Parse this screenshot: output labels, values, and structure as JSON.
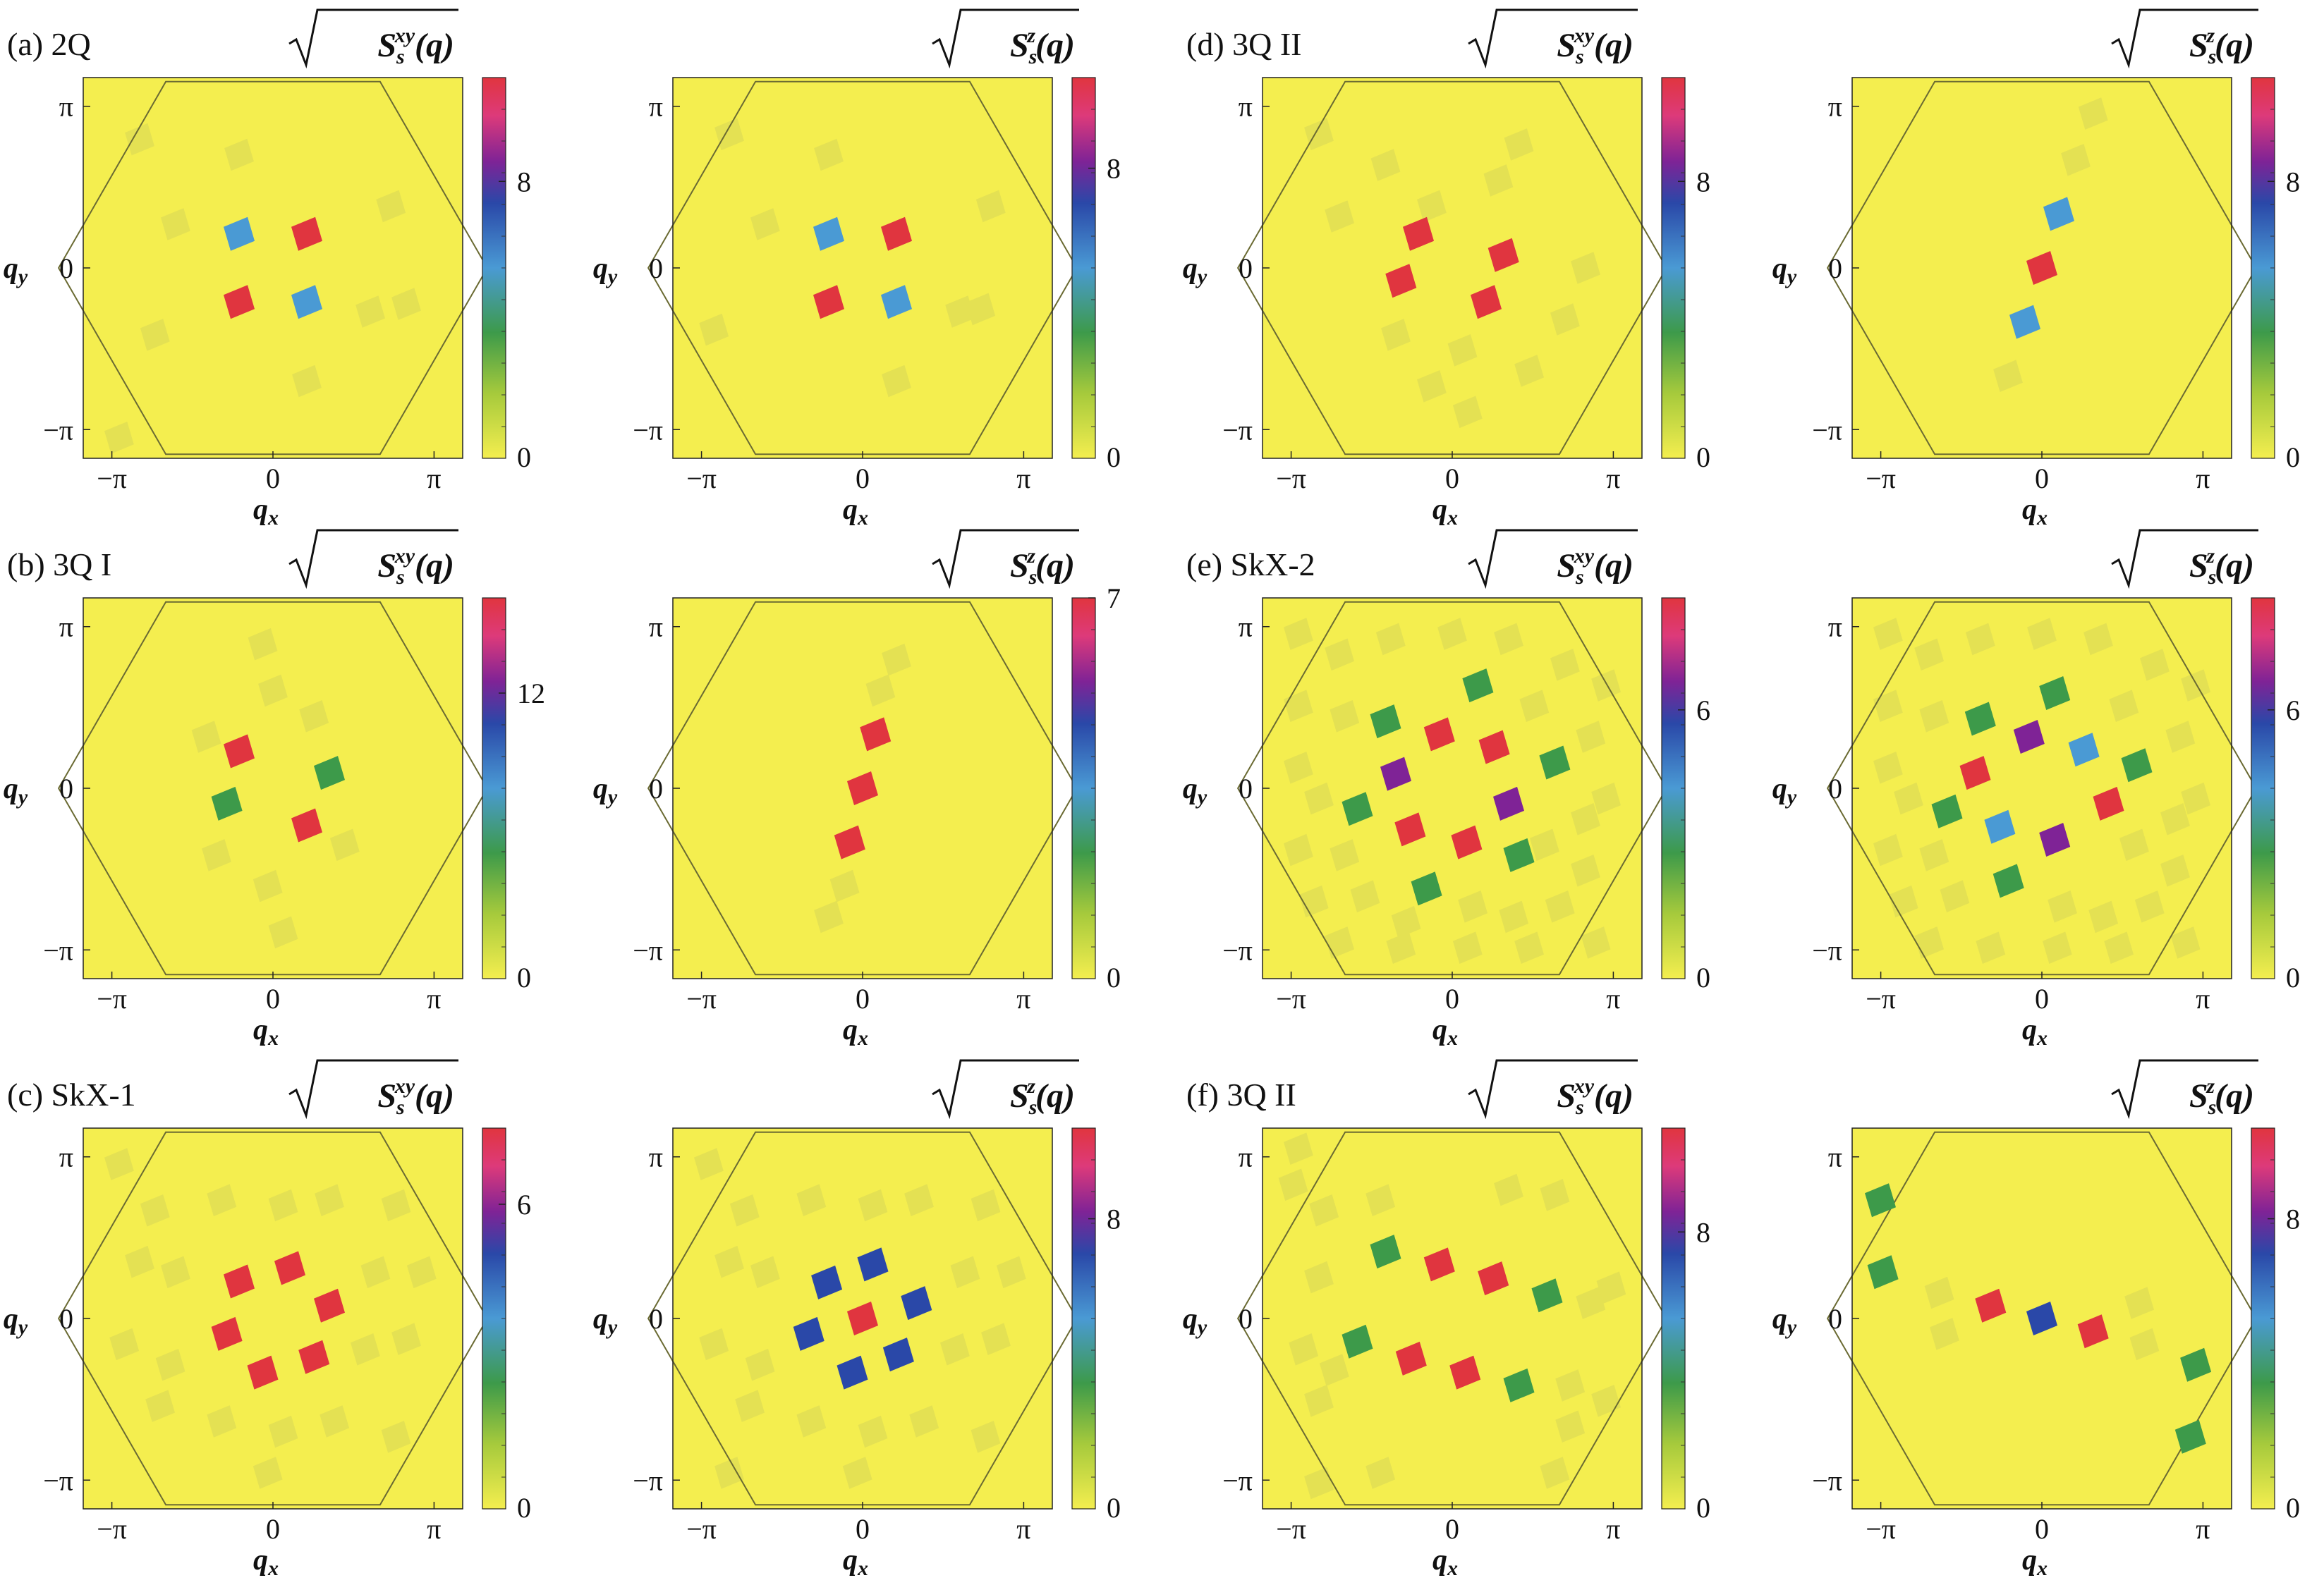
{
  "figure": {
    "axis_labels": {
      "x": "q",
      "x_sub": "x",
      "y": "q",
      "y_sub": "y"
    },
    "ticks": {
      "neg_pi": "−π",
      "zero": "0",
      "pi": "π"
    },
    "colorbar_labels": {
      "xy": "S",
      "xy_sup": "xy",
      "z": "S",
      "z_sup": "z",
      "sub": "s",
      "arg": "(q)"
    },
    "colors": {
      "bg": "#f4ee4f",
      "faint": "#e4e153",
      "red": "#e0353f",
      "magenta": "#dd3a7a",
      "purple": "#7f2396",
      "darkblue": "#2a48a8",
      "blue": "#4a9ad4",
      "green": "#3d9a4a",
      "hex": "#6a6a32"
    }
  },
  "chart_data": [
    {
      "panel": "a",
      "title": "(a) 2Q",
      "type": "heatmap",
      "quantity": "sqrt(S_s^xy(q))",
      "cbar_max": 11,
      "cbar_tick": "8",
      "cbar_tick_value": 8,
      "peaks": [
        {
          "qx": -0.66,
          "qy": 0.66,
          "color": "blue"
        },
        {
          "qx": 0.66,
          "qy": 0.66,
          "color": "red"
        },
        {
          "qx": -0.66,
          "qy": -0.66,
          "color": "red"
        },
        {
          "qx": 0.66,
          "qy": -0.66,
          "color": "blue"
        }
      ],
      "faint": [
        [
          -2.6,
          2.5
        ],
        [
          -0.66,
          2.2
        ],
        [
          -1.9,
          0.85
        ],
        [
          1.9,
          -0.85
        ],
        [
          0.66,
          -2.2
        ],
        [
          2.6,
          -0.7
        ],
        [
          -2.3,
          -1.3
        ],
        [
          2.3,
          1.2
        ],
        [
          -3.0,
          -3.3
        ]
      ]
    },
    {
      "panel": "a",
      "title": "",
      "type": "heatmap",
      "quantity": "sqrt(S_s^z(q))",
      "cbar_max": 10.5,
      "cbar_tick": "8",
      "cbar_tick_value": 8,
      "peaks": [
        {
          "qx": -0.66,
          "qy": 0.66,
          "color": "blue"
        },
        {
          "qx": 0.66,
          "qy": 0.66,
          "color": "red"
        },
        {
          "qx": -0.66,
          "qy": -0.66,
          "color": "red"
        },
        {
          "qx": 0.66,
          "qy": -0.66,
          "color": "blue"
        }
      ],
      "faint": [
        [
          -2.6,
          2.6
        ],
        [
          -0.66,
          2.2
        ],
        [
          -1.9,
          0.85
        ],
        [
          1.9,
          -0.85
        ],
        [
          0.66,
          -2.2
        ],
        [
          2.3,
          -0.8
        ],
        [
          -2.9,
          -1.2
        ],
        [
          2.5,
          1.2
        ]
      ]
    },
    {
      "panel": "d",
      "title": "(d) 3Q II",
      "type": "heatmap",
      "quantity": "sqrt(S_s^xy(q))",
      "cbar_max": 11,
      "cbar_tick": "8",
      "cbar_tick_value": 8,
      "peaks": [
        {
          "qx": -0.66,
          "qy": 0.66,
          "color": "red"
        },
        {
          "qx": 1.0,
          "qy": 0.25,
          "color": "red"
        },
        {
          "qx": -1.0,
          "qy": -0.25,
          "color": "red"
        },
        {
          "qx": 0.66,
          "qy": -0.66,
          "color": "red"
        }
      ],
      "faint": [
        [
          -1.3,
          2.0
        ],
        [
          -0.4,
          1.2
        ],
        [
          0.9,
          1.7
        ],
        [
          1.3,
          2.4
        ],
        [
          -2.2,
          1.0
        ],
        [
          2.2,
          -1.0
        ],
        [
          -1.1,
          -1.3
        ],
        [
          0.2,
          -1.6
        ],
        [
          -0.4,
          -2.3
        ],
        [
          0.3,
          -2.8
        ],
        [
          -2.6,
          2.6
        ],
        [
          2.6,
          0.0
        ],
        [
          1.5,
          -2.0
        ]
      ]
    },
    {
      "panel": "d",
      "title": "",
      "type": "heatmap",
      "quantity": "sqrt(S_s^z(q))",
      "cbar_max": 11,
      "cbar_tick": "8",
      "cbar_tick_value": 8,
      "peaks": [
        {
          "qx": 0.33,
          "qy": 1.05,
          "color": "blue"
        },
        {
          "qx": 0.0,
          "qy": 0.0,
          "color": "red"
        },
        {
          "qx": -0.33,
          "qy": -1.05,
          "color": "blue"
        }
      ],
      "faint": [
        [
          0.66,
          2.1
        ],
        [
          -0.66,
          -2.1
        ],
        [
          1.0,
          3.0
        ]
      ]
    },
    {
      "panel": "b",
      "title": "(b) 3Q I",
      "type": "heatmap",
      "quantity": "sqrt(S_s^xy(q))",
      "cbar_max": 16,
      "cbar_tick": "12",
      "cbar_tick_value": 12,
      "peaks": [
        {
          "qx": -0.66,
          "qy": 0.72,
          "color": "red"
        },
        {
          "qx": 1.1,
          "qy": 0.3,
          "color": "green"
        },
        {
          "qx": -0.9,
          "qy": -0.3,
          "color": "green"
        },
        {
          "qx": 0.66,
          "qy": -0.72,
          "color": "red"
        }
      ],
      "faint": [
        [
          -0.2,
          2.8
        ],
        [
          0.0,
          1.9
        ],
        [
          -0.1,
          -1.9
        ],
        [
          -1.1,
          -1.3
        ],
        [
          0.8,
          1.4
        ],
        [
          -1.3,
          1.0
        ],
        [
          1.4,
          -1.1
        ],
        [
          0.2,
          -2.8
        ]
      ]
    },
    {
      "panel": "b",
      "title": "",
      "type": "heatmap",
      "quantity": "sqrt(S_s^z(q))",
      "cbar_max": 7,
      "cbar_tick": "7",
      "cbar_tick_value": 7,
      "peaks": [
        {
          "qx": 0.25,
          "qy": 1.05,
          "color": "red"
        },
        {
          "qx": 0.0,
          "qy": 0.0,
          "color": "red"
        },
        {
          "qx": -0.25,
          "qy": -1.05,
          "color": "red"
        }
      ],
      "faint": [
        [
          0.66,
          2.5
        ],
        [
          0.35,
          1.9
        ],
        [
          -0.35,
          -1.9
        ],
        [
          -0.66,
          -2.5
        ]
      ]
    },
    {
      "panel": "e",
      "title": "(e) SkX-2",
      "type": "heatmap",
      "quantity": "sqrt(S_s^xy(q))",
      "cbar_max": 8.5,
      "cbar_tick": "6",
      "cbar_tick_value": 6,
      "peaks": [
        {
          "qx": -1.3,
          "qy": 1.3,
          "color": "green"
        },
        {
          "qx": -0.25,
          "qy": 1.05,
          "color": "red"
        },
        {
          "qx": 0.82,
          "qy": 0.8,
          "color": "red"
        },
        {
          "qx": -1.1,
          "qy": 0.28,
          "color": "purple"
        },
        {
          "qx": 1.1,
          "qy": -0.3,
          "color": "purple"
        },
        {
          "qx": -1.85,
          "qy": -0.4,
          "color": "green"
        },
        {
          "qx": -0.82,
          "qy": -0.8,
          "color": "red"
        },
        {
          "qx": 0.28,
          "qy": -1.05,
          "color": "red"
        },
        {
          "qx": 1.3,
          "qy": -1.3,
          "color": "green"
        },
        {
          "qx": 0.5,
          "qy": 2.0,
          "color": "green"
        },
        {
          "qx": -0.5,
          "qy": -1.95,
          "color": "green"
        },
        {
          "qx": 2.0,
          "qy": 0.5,
          "color": "green"
        }
      ],
      "faint": [
        [
          -3.0,
          3.0
        ],
        [
          -2.2,
          2.6
        ],
        [
          -1.2,
          2.9
        ],
        [
          0.0,
          3.0
        ],
        [
          1.1,
          2.9
        ],
        [
          2.2,
          2.4
        ],
        [
          3.0,
          2.0
        ],
        [
          -3.0,
          1.6
        ],
        [
          -2.1,
          1.4
        ],
        [
          1.6,
          1.6
        ],
        [
          2.7,
          1.0
        ],
        [
          -3.0,
          0.4
        ],
        [
          -2.6,
          -0.2
        ],
        [
          2.6,
          -0.6
        ],
        [
          3.0,
          -0.2
        ],
        [
          -3.0,
          -1.2
        ],
        [
          -2.1,
          -1.3
        ],
        [
          1.8,
          -1.1
        ],
        [
          2.6,
          -1.6
        ],
        [
          -2.7,
          -2.2
        ],
        [
          -1.7,
          -2.1
        ],
        [
          -0.9,
          -2.6
        ],
        [
          0.4,
          -2.3
        ],
        [
          1.2,
          -2.5
        ],
        [
          2.1,
          -2.3
        ],
        [
          -2.2,
          -3.0
        ],
        [
          -1.0,
          -3.1
        ],
        [
          0.3,
          -3.1
        ],
        [
          1.5,
          -3.1
        ],
        [
          2.8,
          -3.0
        ]
      ]
    },
    {
      "panel": "e",
      "title": "",
      "type": "heatmap",
      "quantity": "sqrt(S_s^z(q))",
      "cbar_max": 8.5,
      "cbar_tick": "6",
      "cbar_tick_value": 6,
      "peaks": [
        {
          "qx": 0.25,
          "qy": 1.85,
          "color": "green"
        },
        {
          "qx": -1.2,
          "qy": 1.35,
          "color": "green"
        },
        {
          "qx": -0.25,
          "qy": 1.0,
          "color": "purple"
        },
        {
          "qx": 0.82,
          "qy": 0.75,
          "color": "blue"
        },
        {
          "qx": -1.3,
          "qy": 0.3,
          "color": "red"
        },
        {
          "qx": 1.3,
          "qy": -0.3,
          "color": "red"
        },
        {
          "qx": -0.82,
          "qy": -0.75,
          "color": "blue"
        },
        {
          "qx": 0.25,
          "qy": -1.0,
          "color": "purple"
        },
        {
          "qx": -0.65,
          "qy": -1.8,
          "color": "green"
        },
        {
          "qx": 1.85,
          "qy": 0.45,
          "color": "green"
        },
        {
          "qx": -1.85,
          "qy": -0.45,
          "color": "green"
        }
      ],
      "faint": [
        [
          -3.0,
          3.0
        ],
        [
          -2.2,
          2.6
        ],
        [
          -1.2,
          2.9
        ],
        [
          0.0,
          3.0
        ],
        [
          1.1,
          2.9
        ],
        [
          2.2,
          2.4
        ],
        [
          3.0,
          2.0
        ],
        [
          -3.0,
          1.6
        ],
        [
          -2.1,
          1.4
        ],
        [
          1.6,
          1.6
        ],
        [
          2.7,
          1.0
        ],
        [
          -3.0,
          0.4
        ],
        [
          -2.6,
          -0.2
        ],
        [
          2.6,
          -0.6
        ],
        [
          3.0,
          -0.2
        ],
        [
          -3.0,
          -1.2
        ],
        [
          -2.1,
          -1.3
        ],
        [
          1.8,
          -1.1
        ],
        [
          2.6,
          -1.6
        ],
        [
          -2.7,
          -2.2
        ],
        [
          -1.7,
          -2.1
        ],
        [
          0.4,
          -2.3
        ],
        [
          1.2,
          -2.5
        ],
        [
          2.1,
          -2.3
        ],
        [
          -2.2,
          -3.0
        ],
        [
          -1.0,
          -3.1
        ],
        [
          0.3,
          -3.1
        ],
        [
          1.5,
          -3.1
        ],
        [
          2.8,
          -3.0
        ]
      ]
    },
    {
      "panel": "c",
      "title": "(c) SkX-1",
      "type": "heatmap",
      "quantity": "sqrt(S_s^xy(q))",
      "cbar_max": 7.5,
      "cbar_tick": "6",
      "cbar_tick_value": 6,
      "peaks": [
        {
          "qx": -0.66,
          "qy": 0.72,
          "color": "red"
        },
        {
          "qx": 0.33,
          "qy": 0.98,
          "color": "red"
        },
        {
          "qx": 1.1,
          "qy": 0.25,
          "color": "red"
        },
        {
          "qx": -0.9,
          "qy": -0.3,
          "color": "red"
        },
        {
          "qx": -0.2,
          "qy": -1.05,
          "color": "red"
        },
        {
          "qx": 0.8,
          "qy": -0.75,
          "color": "red"
        }
      ],
      "faint": [
        [
          -3.0,
          3.0
        ],
        [
          -2.3,
          2.1
        ],
        [
          -1.0,
          2.3
        ],
        [
          0.2,
          2.2
        ],
        [
          1.1,
          2.3
        ],
        [
          2.4,
          2.2
        ],
        [
          -2.6,
          1.1
        ],
        [
          -1.9,
          0.9
        ],
        [
          2.0,
          0.9
        ],
        [
          2.9,
          0.9
        ],
        [
          -2.9,
          -0.5
        ],
        [
          -2.0,
          -0.9
        ],
        [
          1.8,
          -0.6
        ],
        [
          2.6,
          -0.4
        ],
        [
          -2.2,
          -1.7
        ],
        [
          -1.0,
          -2.0
        ],
        [
          0.2,
          -2.2
        ],
        [
          1.2,
          -2.0
        ],
        [
          2.4,
          -2.3
        ],
        [
          -0.1,
          -3.0
        ]
      ]
    },
    {
      "panel": "c",
      "title": "",
      "type": "heatmap",
      "quantity": "sqrt(S_s^z(q))",
      "cbar_max": 10.5,
      "cbar_tick": "8",
      "cbar_tick_value": 8,
      "peaks": [
        {
          "qx": -0.7,
          "qy": 0.7,
          "color": "darkblue"
        },
        {
          "qx": 0.2,
          "qy": 1.05,
          "color": "darkblue"
        },
        {
          "qx": 1.05,
          "qy": 0.3,
          "color": "darkblue"
        },
        {
          "qx": 0.0,
          "qy": 0.0,
          "color": "red"
        },
        {
          "qx": -1.05,
          "qy": -0.3,
          "color": "darkblue"
        },
        {
          "qx": -0.2,
          "qy": -1.05,
          "color": "darkblue"
        },
        {
          "qx": 0.7,
          "qy": -0.7,
          "color": "darkblue"
        }
      ],
      "faint": [
        [
          -3.0,
          3.0
        ],
        [
          -2.3,
          2.1
        ],
        [
          -1.0,
          2.3
        ],
        [
          0.2,
          2.2
        ],
        [
          1.1,
          2.3
        ],
        [
          2.4,
          2.2
        ],
        [
          -2.6,
          1.1
        ],
        [
          -1.9,
          0.9
        ],
        [
          2.0,
          0.9
        ],
        [
          2.9,
          0.9
        ],
        [
          -2.9,
          -0.5
        ],
        [
          -2.0,
          -0.9
        ],
        [
          1.8,
          -0.6
        ],
        [
          2.6,
          -0.4
        ],
        [
          -2.2,
          -1.7
        ],
        [
          -1.0,
          -2.0
        ],
        [
          0.2,
          -2.2
        ],
        [
          1.2,
          -2.0
        ],
        [
          2.4,
          -2.3
        ],
        [
          -0.1,
          -3.0
        ],
        [
          -2.6,
          -3.0
        ]
      ]
    },
    {
      "panel": "f",
      "title": "(f) 3Q II",
      "type": "heatmap",
      "quantity": "sqrt(S_s^xy(q))",
      "cbar_max": 11,
      "cbar_tick": "8",
      "cbar_tick_value": 8,
      "peaks": [
        {
          "qx": -1.3,
          "qy": 1.3,
          "color": "green"
        },
        {
          "qx": -0.25,
          "qy": 1.05,
          "color": "red"
        },
        {
          "qx": 0.8,
          "qy": 0.78,
          "color": "red"
        },
        {
          "qx": 1.85,
          "qy": 0.45,
          "color": "green"
        },
        {
          "qx": -1.85,
          "qy": -0.45,
          "color": "green"
        },
        {
          "qx": -0.8,
          "qy": -0.78,
          "color": "red"
        },
        {
          "qx": 0.25,
          "qy": -1.05,
          "color": "red"
        },
        {
          "qx": 1.3,
          "qy": -1.3,
          "color": "green"
        }
      ],
      "faint": [
        [
          -3.0,
          3.3
        ],
        [
          -2.5,
          2.1
        ],
        [
          -1.4,
          2.3
        ],
        [
          -3.1,
          2.6
        ],
        [
          1.1,
          2.5
        ],
        [
          2.0,
          2.4
        ],
        [
          -2.6,
          0.8
        ],
        [
          2.7,
          0.3
        ],
        [
          3.1,
          0.6
        ],
        [
          -2.9,
          -0.6
        ],
        [
          -2.3,
          -1.0
        ],
        [
          2.3,
          -1.3
        ],
        [
          -2.6,
          -1.6
        ],
        [
          2.3,
          -2.1
        ],
        [
          3.0,
          -1.6
        ],
        [
          2.0,
          -3.0
        ],
        [
          -2.6,
          -3.2
        ],
        [
          -1.4,
          -3.0
        ]
      ]
    },
    {
      "panel": "f",
      "title": "",
      "type": "heatmap",
      "quantity": "sqrt(S_s^z(q))",
      "cbar_max": 10.5,
      "cbar_tick": "8",
      "cbar_tick_value": 8,
      "peaks": [
        {
          "qx": -1.0,
          "qy": 0.25,
          "color": "red"
        },
        {
          "qx": 0.0,
          "qy": 0.0,
          "color": "darkblue"
        },
        {
          "qx": 1.0,
          "qy": -0.25,
          "color": "red"
        },
        {
          "qx": -3.15,
          "qy": 2.3,
          "color": "green"
        },
        {
          "qx": -3.1,
          "qy": 0.9,
          "color": "green"
        },
        {
          "qx": 3.0,
          "qy": -0.9,
          "color": "green"
        },
        {
          "qx": 2.9,
          "qy": -2.3,
          "color": "green"
        }
      ],
      "faint": [
        [
          -2.0,
          0.5
        ],
        [
          2.0,
          -0.5
        ],
        [
          1.9,
          0.3
        ],
        [
          -1.9,
          -0.3
        ]
      ]
    }
  ]
}
